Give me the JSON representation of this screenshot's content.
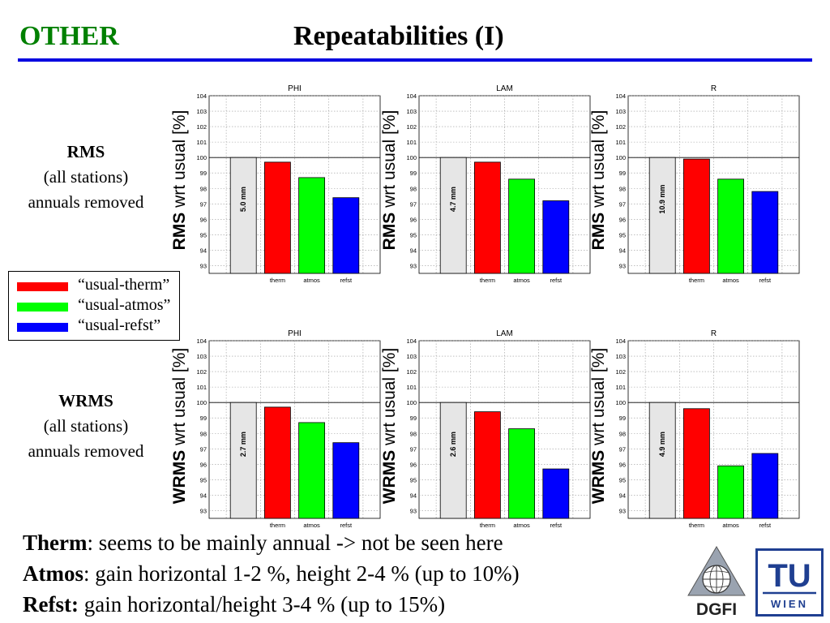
{
  "header": {
    "label": "OTHER",
    "title": "Repeatabilities (I)"
  },
  "colors": {
    "accent_green": "#008000",
    "rule_blue": "#0000e0",
    "therm": "#ff0000",
    "atmos": "#00ff00",
    "refst": "#0000ff",
    "reference_bar": "#e6e6e6"
  },
  "rows": [
    {
      "title": "RMS",
      "line1": "(all stations)",
      "line2": "annuals removed"
    },
    {
      "title": "WRMS",
      "line1": "(all stations)",
      "line2": "annuals removed"
    }
  ],
  "legend": {
    "items": [
      {
        "label": "“usual-therm”",
        "color": "#ff0000"
      },
      {
        "label": "“usual-atmos”",
        "color": "#00ff00"
      },
      {
        "label": "“usual-refst”",
        "color": "#0000ff"
      }
    ]
  },
  "ylabels": {
    "rms": {
      "bold": "RMS",
      "rest": " wrt usual [%]"
    },
    "wrms": {
      "bold": "WRMS",
      "rest": " wrt usual [%]"
    }
  },
  "chart_data": [
    {
      "type": "bar",
      "title": "PHI",
      "categories": [
        "",
        "therm",
        "atmos",
        "refst"
      ],
      "values": [
        100,
        99.7,
        98.7,
        97.4
      ],
      "reference_label": "5.0 mm",
      "ylim": [
        92.5,
        104
      ],
      "yticks": [
        93,
        94,
        95,
        96,
        97,
        98,
        99,
        100,
        101,
        102,
        103,
        104
      ],
      "grid": true
    },
    {
      "type": "bar",
      "title": "LAM",
      "categories": [
        "",
        "therm",
        "atmos",
        "refst"
      ],
      "values": [
        100,
        99.7,
        98.6,
        97.2
      ],
      "reference_label": "4.7 mm",
      "ylim": [
        92.5,
        104
      ],
      "yticks": [
        93,
        94,
        95,
        96,
        97,
        98,
        99,
        100,
        101,
        102,
        103,
        104
      ],
      "grid": true
    },
    {
      "type": "bar",
      "title": "R",
      "categories": [
        "",
        "therm",
        "atmos",
        "refst"
      ],
      "values": [
        100,
        99.9,
        98.6,
        97.8
      ],
      "reference_label": "10.9 mm",
      "ylim": [
        92.5,
        104
      ],
      "yticks": [
        93,
        94,
        95,
        96,
        97,
        98,
        99,
        100,
        101,
        102,
        103,
        104
      ],
      "grid": true
    },
    {
      "type": "bar",
      "title": "PHI",
      "categories": [
        "",
        "therm",
        "atmos",
        "refst"
      ],
      "values": [
        100,
        99.7,
        98.7,
        97.4
      ],
      "reference_label": "2.7 mm",
      "ylim": [
        92.5,
        104
      ],
      "yticks": [
        93,
        94,
        95,
        96,
        97,
        98,
        99,
        100,
        101,
        102,
        103,
        104
      ],
      "grid": true
    },
    {
      "type": "bar",
      "title": "LAM",
      "categories": [
        "",
        "therm",
        "atmos",
        "refst"
      ],
      "values": [
        100,
        99.4,
        98.3,
        95.7
      ],
      "reference_label": "2.6 mm",
      "ylim": [
        92.5,
        104
      ],
      "yticks": [
        93,
        94,
        95,
        96,
        97,
        98,
        99,
        100,
        101,
        102,
        103,
        104
      ],
      "grid": true
    },
    {
      "type": "bar",
      "title": "R",
      "categories": [
        "",
        "therm",
        "atmos",
        "refst"
      ],
      "values": [
        100,
        99.6,
        95.9,
        96.7
      ],
      "reference_label": "4.9 mm",
      "ylim": [
        92.5,
        104
      ],
      "yticks": [
        93,
        94,
        95,
        96,
        97,
        98,
        99,
        100,
        101,
        102,
        103,
        104
      ],
      "grid": true
    }
  ],
  "notes": [
    {
      "bold": "Therm",
      "rest": ": seems to be mainly annual -> not be seen here"
    },
    {
      "bold": "Atmos",
      "rest": ": gain horizontal 1-2 %, height 2-4 % (up to 10%)"
    },
    {
      "bold": "Refst:",
      "rest": " gain horizontal/height 3-4 % (up to 15%)"
    }
  ],
  "logos": {
    "dgfi": "DGFI",
    "tu_top": "TU",
    "tu_bottom": "WIEN"
  }
}
